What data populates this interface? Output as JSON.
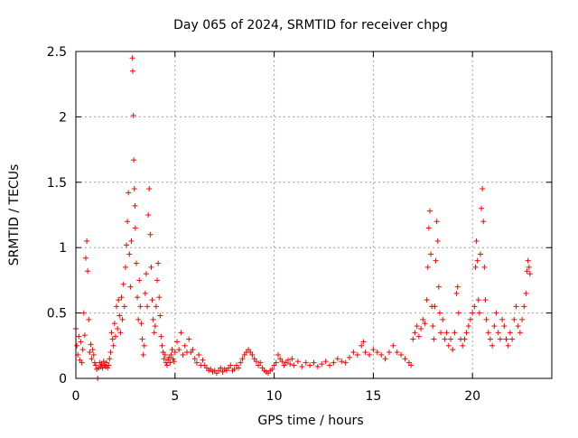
{
  "chart_data": {
    "type": "scatter",
    "title": "Day 065 of 2024, SRMTID for receiver chpg",
    "xlabel": "GPS time / hours",
    "ylabel": "SRMTID / TECUs",
    "xlim": [
      0,
      24
    ],
    "ylim": [
      0,
      2.5
    ],
    "xticks": [
      0,
      5,
      10,
      15,
      20
    ],
    "xtick_labels": [
      "0",
      "5",
      "10",
      "15",
      "20"
    ],
    "yticks": [
      0,
      0.5,
      1,
      1.5,
      2,
      2.5
    ],
    "ytick_labels": [
      "0",
      "0.5",
      "1",
      "1.5",
      "2",
      "2.5"
    ],
    "grid": true,
    "marker": "+",
    "marker_color": "#ff0000",
    "series": [
      {
        "name": "SRMTID",
        "points": [
          [
            0.0,
            0.38
          ],
          [
            0.05,
            0.25
          ],
          [
            0.1,
            0.18
          ],
          [
            0.15,
            0.32
          ],
          [
            0.2,
            0.14
          ],
          [
            0.25,
            0.28
          ],
          [
            0.3,
            0.12
          ],
          [
            0.35,
            0.22
          ],
          [
            0.4,
            0.5
          ],
          [
            0.45,
            0.33
          ],
          [
            0.5,
            0.92
          ],
          [
            0.55,
            1.05
          ],
          [
            0.6,
            0.82
          ],
          [
            0.65,
            0.45
          ],
          [
            0.7,
            0.2
          ],
          [
            0.75,
            0.26
          ],
          [
            0.8,
            0.15
          ],
          [
            0.85,
            0.22
          ],
          [
            0.9,
            0.18
          ],
          [
            0.95,
            0.12
          ],
          [
            1.0,
            0.1
          ],
          [
            1.05,
            0.07
          ],
          [
            1.1,
            0.0
          ],
          [
            1.15,
            0.08
          ],
          [
            1.2,
            0.12
          ],
          [
            1.25,
            0.09
          ],
          [
            1.3,
            0.11
          ],
          [
            1.35,
            0.08
          ],
          [
            1.4,
            0.13
          ],
          [
            1.45,
            0.1
          ],
          [
            1.5,
            0.09
          ],
          [
            1.55,
            0.12
          ],
          [
            1.6,
            0.08
          ],
          [
            1.65,
            0.1
          ],
          [
            1.7,
            0.15
          ],
          [
            1.75,
            0.2
          ],
          [
            1.8,
            0.35
          ],
          [
            1.85,
            0.3
          ],
          [
            1.9,
            0.25
          ],
          [
            1.95,
            0.42
          ],
          [
            2.0,
            0.32
          ],
          [
            2.05,
            0.55
          ],
          [
            2.1,
            0.38
          ],
          [
            2.15,
            0.6
          ],
          [
            2.2,
            0.48
          ],
          [
            2.25,
            0.35
          ],
          [
            2.3,
            0.62
          ],
          [
            2.35,
            0.45
          ],
          [
            2.4,
            0.72
          ],
          [
            2.45,
            0.55
          ],
          [
            2.5,
            0.85
          ],
          [
            2.55,
            1.02
          ],
          [
            2.6,
            1.2
          ],
          [
            2.65,
            1.42
          ],
          [
            2.7,
            0.95
          ],
          [
            2.75,
            0.7
          ],
          [
            2.8,
            1.05
          ],
          [
            2.85,
            2.45
          ],
          [
            2.87,
            2.35
          ],
          [
            2.9,
            2.01
          ],
          [
            2.92,
            1.67
          ],
          [
            2.95,
            1.45
          ],
          [
            2.98,
            1.32
          ],
          [
            3.0,
            1.15
          ],
          [
            3.05,
            0.88
          ],
          [
            3.1,
            0.62
          ],
          [
            3.15,
            0.45
          ],
          [
            3.2,
            0.75
          ],
          [
            3.25,
            0.55
          ],
          [
            3.3,
            0.42
          ],
          [
            3.35,
            0.3
          ],
          [
            3.4,
            0.18
          ],
          [
            3.45,
            0.25
          ],
          [
            3.5,
            0.65
          ],
          [
            3.55,
            0.8
          ],
          [
            3.6,
            0.55
          ],
          [
            3.65,
            1.25
          ],
          [
            3.7,
            1.45
          ],
          [
            3.75,
            1.1
          ],
          [
            3.8,
            0.85
          ],
          [
            3.85,
            0.6
          ],
          [
            3.9,
            0.45
          ],
          [
            3.95,
            0.35
          ],
          [
            4.0,
            0.4
          ],
          [
            4.05,
            0.55
          ],
          [
            4.1,
            0.75
          ],
          [
            4.15,
            0.88
          ],
          [
            4.2,
            0.62
          ],
          [
            4.25,
            0.48
          ],
          [
            4.3,
            0.32
          ],
          [
            4.35,
            0.25
          ],
          [
            4.4,
            0.2
          ],
          [
            4.45,
            0.15
          ],
          [
            4.5,
            0.18
          ],
          [
            4.55,
            0.12
          ],
          [
            4.6,
            0.1
          ],
          [
            4.65,
            0.14
          ],
          [
            4.7,
            0.16
          ],
          [
            4.75,
            0.12
          ],
          [
            4.8,
            0.18
          ],
          [
            4.85,
            0.22
          ],
          [
            4.9,
            0.15
          ],
          [
            4.95,
            0.13
          ],
          [
            5.0,
            0.2
          ],
          [
            5.1,
            0.28
          ],
          [
            5.2,
            0.22
          ],
          [
            5.3,
            0.35
          ],
          [
            5.4,
            0.18
          ],
          [
            5.5,
            0.25
          ],
          [
            5.6,
            0.2
          ],
          [
            5.7,
            0.3
          ],
          [
            5.8,
            0.2
          ],
          [
            5.9,
            0.22
          ],
          [
            6.0,
            0.15
          ],
          [
            6.1,
            0.12
          ],
          [
            6.2,
            0.18
          ],
          [
            6.3,
            0.1
          ],
          [
            6.4,
            0.14
          ],
          [
            6.5,
            0.1
          ],
          [
            6.6,
            0.08
          ],
          [
            6.7,
            0.06
          ],
          [
            6.8,
            0.07
          ],
          [
            6.9,
            0.05
          ],
          [
            7.0,
            0.06
          ],
          [
            7.1,
            0.04
          ],
          [
            7.2,
            0.06
          ],
          [
            7.3,
            0.08
          ],
          [
            7.4,
            0.05
          ],
          [
            7.5,
            0.07
          ],
          [
            7.6,
            0.06
          ],
          [
            7.7,
            0.08
          ],
          [
            7.8,
            0.1
          ],
          [
            7.9,
            0.06
          ],
          [
            8.0,
            0.07
          ],
          [
            8.1,
            0.1
          ],
          [
            8.2,
            0.08
          ],
          [
            8.3,
            0.12
          ],
          [
            8.4,
            0.15
          ],
          [
            8.5,
            0.18
          ],
          [
            8.6,
            0.2
          ],
          [
            8.7,
            0.22
          ],
          [
            8.8,
            0.2
          ],
          [
            8.9,
            0.18
          ],
          [
            9.0,
            0.15
          ],
          [
            9.1,
            0.13
          ],
          [
            9.2,
            0.1
          ],
          [
            9.3,
            0.12
          ],
          [
            9.4,
            0.08
          ],
          [
            9.5,
            0.06
          ],
          [
            9.6,
            0.05
          ],
          [
            9.7,
            0.04
          ],
          [
            9.8,
            0.06
          ],
          [
            9.9,
            0.07
          ],
          [
            10.0,
            0.1
          ],
          [
            10.1,
            0.12
          ],
          [
            10.2,
            0.18
          ],
          [
            10.3,
            0.15
          ],
          [
            10.4,
            0.13
          ],
          [
            10.5,
            0.1
          ],
          [
            10.6,
            0.12
          ],
          [
            10.7,
            0.14
          ],
          [
            10.8,
            0.11
          ],
          [
            10.9,
            0.15
          ],
          [
            11.0,
            0.1
          ],
          [
            11.2,
            0.13
          ],
          [
            11.4,
            0.09
          ],
          [
            11.6,
            0.12
          ],
          [
            11.8,
            0.1
          ],
          [
            12.0,
            0.12
          ],
          [
            12.2,
            0.09
          ],
          [
            12.4,
            0.11
          ],
          [
            12.6,
            0.13
          ],
          [
            12.8,
            0.1
          ],
          [
            13.0,
            0.12
          ],
          [
            13.2,
            0.15
          ],
          [
            13.4,
            0.13
          ],
          [
            13.6,
            0.12
          ],
          [
            13.8,
            0.16
          ],
          [
            14.0,
            0.2
          ],
          [
            14.2,
            0.18
          ],
          [
            14.4,
            0.25
          ],
          [
            14.5,
            0.28
          ],
          [
            14.6,
            0.2
          ],
          [
            14.8,
            0.18
          ],
          [
            15.0,
            0.22
          ],
          [
            15.2,
            0.2
          ],
          [
            15.4,
            0.18
          ],
          [
            15.6,
            0.15
          ],
          [
            15.8,
            0.2
          ],
          [
            16.0,
            0.25
          ],
          [
            16.2,
            0.2
          ],
          [
            16.4,
            0.18
          ],
          [
            16.6,
            0.15
          ],
          [
            16.8,
            0.12
          ],
          [
            16.9,
            0.1
          ],
          [
            17.0,
            0.3
          ],
          [
            17.1,
            0.35
          ],
          [
            17.2,
            0.4
          ],
          [
            17.3,
            0.32
          ],
          [
            17.4,
            0.38
          ],
          [
            17.5,
            0.45
          ],
          [
            17.6,
            0.42
          ],
          [
            17.7,
            0.6
          ],
          [
            17.75,
            0.85
          ],
          [
            17.8,
            1.15
          ],
          [
            17.85,
            1.28
          ],
          [
            17.9,
            0.95
          ],
          [
            17.95,
            0.55
          ],
          [
            18.0,
            0.4
          ],
          [
            18.05,
            0.3
          ],
          [
            18.1,
            0.55
          ],
          [
            18.15,
            0.9
          ],
          [
            18.2,
            1.2
          ],
          [
            18.25,
            1.05
          ],
          [
            18.3,
            0.7
          ],
          [
            18.35,
            0.5
          ],
          [
            18.4,
            0.35
          ],
          [
            18.5,
            0.45
          ],
          [
            18.6,
            0.3
          ],
          [
            18.7,
            0.35
          ],
          [
            18.8,
            0.25
          ],
          [
            18.9,
            0.3
          ],
          [
            19.0,
            0.22
          ],
          [
            19.1,
            0.35
          ],
          [
            19.2,
            0.65
          ],
          [
            19.25,
            0.7
          ],
          [
            19.3,
            0.5
          ],
          [
            19.4,
            0.3
          ],
          [
            19.5,
            0.25
          ],
          [
            19.6,
            0.3
          ],
          [
            19.7,
            0.35
          ],
          [
            19.8,
            0.4
          ],
          [
            19.9,
            0.45
          ],
          [
            20.0,
            0.5
          ],
          [
            20.1,
            0.55
          ],
          [
            20.15,
            0.85
          ],
          [
            20.2,
            1.05
          ],
          [
            20.25,
            0.9
          ],
          [
            20.3,
            0.6
          ],
          [
            20.35,
            0.5
          ],
          [
            20.4,
            0.95
          ],
          [
            20.45,
            1.3
          ],
          [
            20.5,
            1.45
          ],
          [
            20.55,
            1.2
          ],
          [
            20.6,
            0.85
          ],
          [
            20.65,
            0.6
          ],
          [
            20.7,
            0.45
          ],
          [
            20.8,
            0.35
          ],
          [
            20.9,
            0.3
          ],
          [
            21.0,
            0.25
          ],
          [
            21.1,
            0.4
          ],
          [
            21.2,
            0.5
          ],
          [
            21.3,
            0.35
          ],
          [
            21.4,
            0.3
          ],
          [
            21.5,
            0.45
          ],
          [
            21.6,
            0.4
          ],
          [
            21.7,
            0.3
          ],
          [
            21.8,
            0.25
          ],
          [
            21.9,
            0.35
          ],
          [
            22.0,
            0.3
          ],
          [
            22.1,
            0.45
          ],
          [
            22.2,
            0.55
          ],
          [
            22.3,
            0.4
          ],
          [
            22.4,
            0.35
          ],
          [
            22.5,
            0.45
          ],
          [
            22.6,
            0.55
          ],
          [
            22.7,
            0.65
          ],
          [
            22.75,
            0.82
          ],
          [
            22.8,
            0.9
          ],
          [
            22.85,
            0.85
          ],
          [
            22.9,
            0.8
          ]
        ]
      }
    ]
  }
}
